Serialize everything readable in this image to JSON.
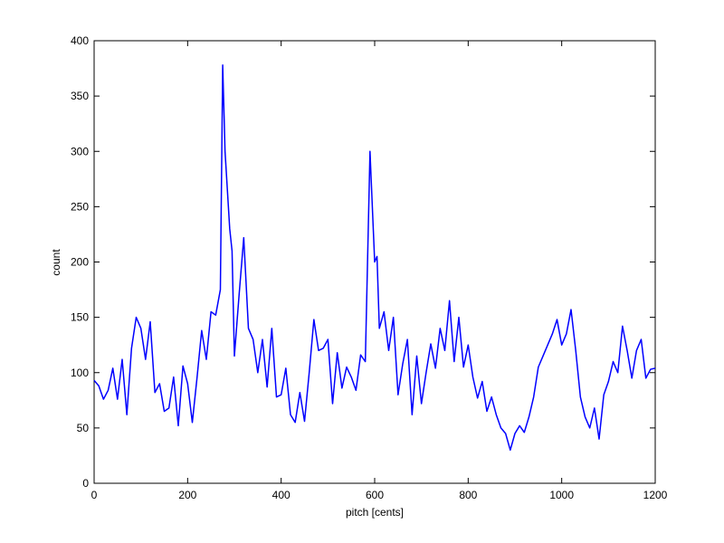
{
  "chart_data": {
    "type": "line",
    "xlabel": "pitch [cents]",
    "ylabel": "count",
    "x": [
      0,
      10,
      20,
      30,
      40,
      50,
      60,
      70,
      80,
      90,
      100,
      110,
      120,
      130,
      140,
      150,
      160,
      170,
      180,
      190,
      200,
      210,
      220,
      230,
      240,
      250,
      260,
      270,
      275,
      280,
      290,
      295,
      300,
      310,
      320,
      330,
      340,
      350,
      360,
      370,
      380,
      390,
      400,
      410,
      420,
      430,
      440,
      450,
      460,
      470,
      480,
      490,
      500,
      510,
      520,
      530,
      540,
      550,
      560,
      570,
      580,
      590,
      600,
      605,
      610,
      620,
      630,
      640,
      650,
      660,
      670,
      680,
      690,
      700,
      710,
      720,
      730,
      740,
      750,
      760,
      770,
      780,
      790,
      800,
      810,
      820,
      830,
      840,
      850,
      860,
      870,
      880,
      890,
      900,
      910,
      920,
      930,
      940,
      950,
      960,
      970,
      980,
      990,
      1000,
      1010,
      1020,
      1030,
      1040,
      1050,
      1060,
      1070,
      1080,
      1090,
      1100,
      1110,
      1120,
      1130,
      1140,
      1150,
      1160,
      1170,
      1180,
      1190,
      1200
    ],
    "series": [
      {
        "color": "#0000ff",
        "values": [
          93,
          88,
          76,
          84,
          104,
          76,
          112,
          62,
          122,
          150,
          140,
          112,
          146,
          82,
          90,
          65,
          68,
          96,
          52,
          106,
          90,
          55,
          95,
          138,
          112,
          155,
          152,
          175,
          378,
          300,
          230,
          210,
          115,
          170,
          222,
          140,
          130,
          100,
          130,
          87,
          140,
          78,
          80,
          104,
          62,
          55,
          82,
          56,
          100,
          148,
          120,
          122,
          130,
          72,
          118,
          86,
          105,
          96,
          84,
          116,
          110,
          300,
          200,
          205,
          140,
          155,
          120,
          150,
          80,
          108,
          130,
          62,
          115,
          72,
          100,
          126,
          104,
          140,
          120,
          165,
          110,
          150,
          105,
          125,
          96,
          77,
          92,
          65,
          78,
          62,
          50,
          45,
          30,
          45,
          52,
          46,
          60,
          78,
          105,
          115,
          125,
          135,
          148,
          125,
          135,
          157,
          120,
          78,
          60,
          50,
          68,
          40,
          80,
          92,
          110,
          100,
          142,
          120,
          95,
          120,
          130,
          95,
          103,
          104
        ]
      }
    ],
    "xlim": [
      0,
      1200
    ],
    "xticks": [
      0,
      200,
      400,
      600,
      800,
      1000,
      1200
    ],
    "ylim": [
      0,
      400
    ],
    "yticks": [
      0,
      50,
      100,
      150,
      200,
      250,
      300,
      350,
      400
    ]
  }
}
